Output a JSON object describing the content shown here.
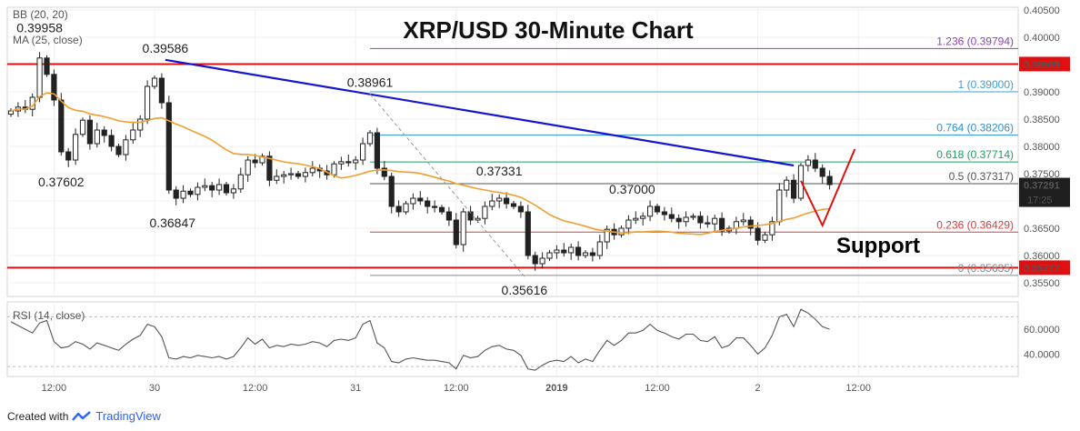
{
  "chart_data": {
    "type": "candlestick",
    "title": "XRP/USD 30-Minute Chart",
    "indicators": {
      "bollinger_label": "BB (20, 20)",
      "ma_label": "MA (25, close)",
      "rsi_label": "RSI (14, close)"
    },
    "price_axis": {
      "ylim": [
        0.3525,
        0.4055
      ],
      "ticks": [
        "0.40500",
        "0.40000",
        "0.39500",
        "0.39000",
        "0.38500",
        "0.38000",
        "0.37500",
        "0.37000",
        "0.36500",
        "0.36000",
        "0.35500"
      ],
      "tick_values": [
        0.405,
        0.4,
        0.395,
        0.39,
        0.385,
        0.38,
        0.375,
        0.37,
        0.365,
        0.36,
        0.355
      ]
    },
    "rsi_axis": {
      "ylim": [
        22,
        82
      ],
      "ticks": [
        "60.0000",
        "40.0000"
      ],
      "tick_values": [
        60,
        40
      ]
    },
    "time_axis": {
      "ticks": [
        "12:00",
        "30",
        "12:00",
        "31",
        "12:00",
        "2019",
        "12:00",
        "2",
        "12:00"
      ],
      "tick_index": [
        6,
        20,
        34,
        48,
        62,
        76,
        90,
        104,
        118
      ]
    },
    "current_price": {
      "label": "0.37291",
      "value": 0.37291,
      "countdown": "17:25"
    },
    "horizontal_levels": [
      {
        "label": "0.39509",
        "value": 0.39509,
        "color": "#e01010"
      },
      {
        "label": "0.35777",
        "value": 0.35777,
        "color": "#e01010"
      }
    ],
    "trendline": {
      "from": {
        "index": 21.5,
        "value": 0.39586
      },
      "to": {
        "index": 109,
        "value": 0.3765
      },
      "color": "#1515d0"
    },
    "fibonacci": {
      "start_index": 50,
      "levels": [
        {
          "label": "1.236 (0.39794)",
          "value": 0.39794,
          "color": "#8e44ad"
        },
        {
          "label": "1 (0.39000)",
          "value": 0.39,
          "color": "#3ca0d0"
        },
        {
          "label": "0.764 (0.38206)",
          "value": 0.38206,
          "color": "#2a8fd0"
        },
        {
          "label": "0.618 (0.37714)",
          "value": 0.37714,
          "color": "#1ea060"
        },
        {
          "label": "0.5 (0.37317)",
          "value": 0.37317,
          "color": "#555555"
        },
        {
          "label": "0.236 (0.36429)",
          "value": 0.36429,
          "color": "#d04040"
        },
        {
          "label": "0 (0.35635)",
          "value": 0.35635,
          "color": "#888888"
        }
      ]
    },
    "fib_diagonal": {
      "from": {
        "index": 50,
        "value": 0.38961
      },
      "to": {
        "index": 71.5,
        "value": 0.35616
      }
    },
    "price_labels": [
      {
        "text": "0.39586",
        "index": 21.5,
        "value": 0.39586,
        "pos": "above"
      },
      {
        "text": "0.38961",
        "index": 50,
        "value": 0.38961,
        "pos": "above"
      },
      {
        "text": "0.37331",
        "index": 68,
        "value": 0.37331,
        "pos": "above"
      },
      {
        "text": "0.37000",
        "index": 86.5,
        "value": 0.37,
        "pos": "above"
      },
      {
        "text": "0.37602",
        "index": 7,
        "value": 0.37602,
        "pos": "below"
      },
      {
        "text": "0.36847",
        "index": 22.5,
        "value": 0.36847,
        "pos": "below"
      },
      {
        "text": "0.35616",
        "index": 71.5,
        "value": 0.35616,
        "pos": "below"
      },
      {
        "text": "0.39958",
        "index": 4,
        "value": 0.39958,
        "pos": "above"
      }
    ],
    "annotation": {
      "text": "Support",
      "color": "#e01010"
    },
    "projection": {
      "points": [
        {
          "index": 110,
          "value": 0.3737
        },
        {
          "index": 113,
          "value": 0.3655
        },
        {
          "index": 117.5,
          "value": 0.3795
        }
      ],
      "color": "#e01010"
    },
    "ma_color": "#f0a030",
    "rsi_color": "#555555",
    "series": {
      "name": "XRP/USD",
      "close": [
        0.3865,
        0.3872,
        0.3868,
        0.389,
        0.3962,
        0.3932,
        0.3885,
        0.379,
        0.3775,
        0.3822,
        0.3848,
        0.3805,
        0.383,
        0.382,
        0.38,
        0.3785,
        0.3812,
        0.383,
        0.385,
        0.391,
        0.3925,
        0.388,
        0.372,
        0.3705,
        0.3718,
        0.3712,
        0.3725,
        0.3728,
        0.372,
        0.373,
        0.3715,
        0.3722,
        0.3748,
        0.3775,
        0.377,
        0.3782,
        0.3738,
        0.3745,
        0.3748,
        0.375,
        0.3745,
        0.3752,
        0.376,
        0.3755,
        0.3748,
        0.3768,
        0.3772,
        0.377,
        0.3775,
        0.3805,
        0.3825,
        0.376,
        0.3745,
        0.369,
        0.368,
        0.3695,
        0.3705,
        0.37,
        0.369,
        0.3688,
        0.368,
        0.3665,
        0.362,
        0.368,
        0.3665,
        0.3668,
        0.369,
        0.37,
        0.3705,
        0.3695,
        0.369,
        0.368,
        0.36,
        0.3585,
        0.3595,
        0.3605,
        0.361,
        0.3605,
        0.3615,
        0.36,
        0.3605,
        0.36,
        0.3625,
        0.3648,
        0.3638,
        0.365,
        0.3665,
        0.3668,
        0.3672,
        0.369,
        0.368,
        0.3675,
        0.3668,
        0.3662,
        0.367,
        0.3672,
        0.366,
        0.3658,
        0.3668,
        0.3645,
        0.365,
        0.3662,
        0.3665,
        0.365,
        0.3628,
        0.3638,
        0.3662,
        0.372,
        0.3738,
        0.3705,
        0.3765,
        0.3775,
        0.376,
        0.3745,
        0.373
      ]
    },
    "rsi": [
      66,
      63,
      60,
      57,
      65,
      67,
      50,
      45,
      46,
      50,
      48,
      44,
      49,
      47,
      45,
      43,
      48,
      52,
      55,
      64,
      62,
      54,
      37,
      36,
      38,
      37,
      39,
      38,
      37,
      38,
      36,
      38,
      45,
      53,
      48,
      52,
      45,
      47,
      46,
      48,
      47,
      48,
      50,
      49,
      46,
      51,
      52,
      51,
      53,
      64,
      67,
      49,
      45,
      34,
      33,
      36,
      37,
      36,
      35,
      35,
      34,
      33,
      28,
      39,
      37,
      38,
      43,
      46,
      47,
      44,
      43,
      39,
      28,
      27,
      31,
      34,
      35,
      34,
      38,
      33,
      36,
      34,
      43,
      51,
      47,
      51,
      57,
      57,
      59,
      64,
      59,
      57,
      54,
      52,
      56,
      56,
      51,
      50,
      54,
      45,
      47,
      53,
      53,
      47,
      40,
      45,
      55,
      70,
      72,
      62,
      76,
      73,
      68,
      62,
      60
    ]
  }
}
